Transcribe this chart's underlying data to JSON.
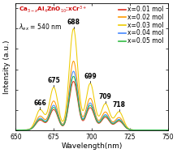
{
  "title_text": "Ca$_{3-x}$Al$_4$ZnO$_{10}$:xCr$^{3+}$",
  "lambda_text": "$\\lambda_{ex}$ = 540 nm",
  "xlabel": "Wavelength(nm)",
  "ylabel": "Intensity (a.u.)",
  "xlim": [
    650,
    750
  ],
  "xticks": [
    650,
    675,
    700,
    725,
    750
  ],
  "peaks": [
    666,
    675,
    688,
    699,
    709,
    718
  ],
  "peak_labels": [
    "666",
    "675",
    "688",
    "699",
    "709",
    "718"
  ],
  "peak_widths": [
    2.8,
    2.8,
    2.8,
    2.8,
    2.8,
    2.8
  ],
  "peak_heights": [
    0.2,
    0.42,
    1.0,
    0.46,
    0.26,
    0.18
  ],
  "series": [
    {
      "label": "x=0.01 mol",
      "color": "#e03020",
      "scale": 0.48
    },
    {
      "label": "x=0.02 mol",
      "color": "#ff9900",
      "scale": 0.68
    },
    {
      "label": "x=0.03 mol",
      "color": "#eecc00",
      "scale": 1.0
    },
    {
      "label": "x=0.04 mol",
      "color": "#4488ff",
      "scale": 0.58
    },
    {
      "label": "x=0.05 mol",
      "color": "#33bb44",
      "scale": 0.53
    }
  ],
  "background_color": "#ffffff",
  "title_color": "#cc0000",
  "annotation_fontsize": 5.5,
  "label_fontsize": 6.5,
  "tick_fontsize": 5.5,
  "legend_fontsize": 5.5,
  "linewidth": 0.75
}
